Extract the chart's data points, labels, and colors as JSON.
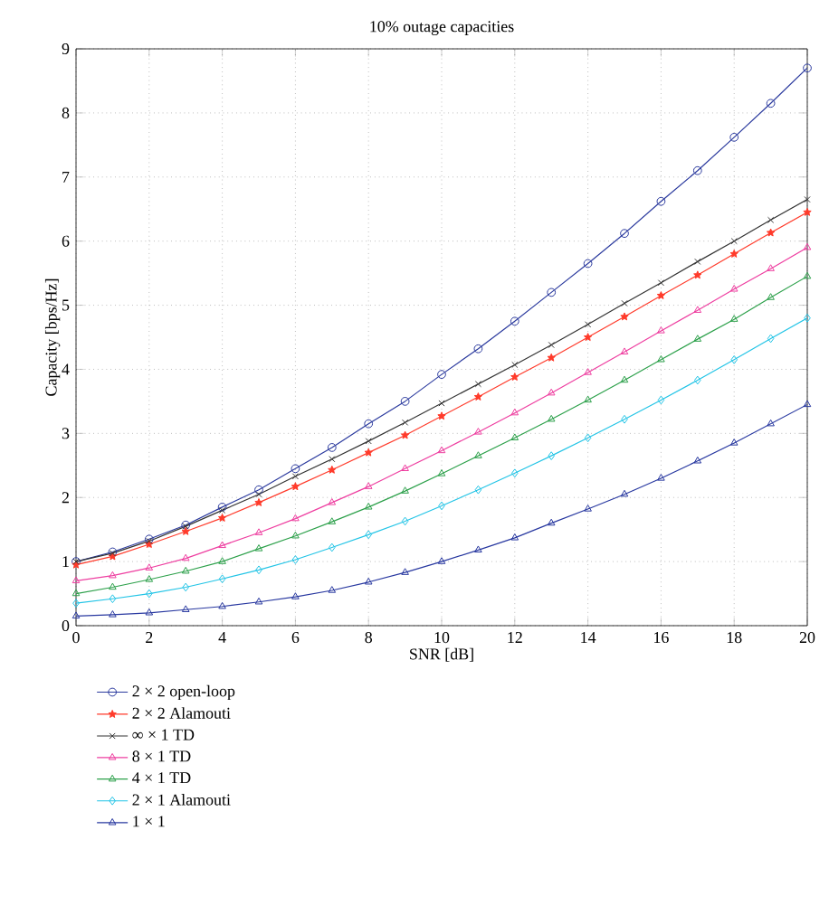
{
  "chart_data": {
    "type": "line",
    "title": "10% outage capacities",
    "xlabel": "SNR [dB]",
    "ylabel": "Capacity [bps/Hz]",
    "x": [
      0,
      1,
      2,
      3,
      4,
      5,
      6,
      7,
      8,
      9,
      10,
      11,
      12,
      13,
      14,
      15,
      16,
      17,
      18,
      19,
      20
    ],
    "xlim": [
      0,
      20
    ],
    "ylim": [
      0,
      9
    ],
    "xticks": [
      0,
      2,
      4,
      6,
      8,
      10,
      12,
      14,
      16,
      18,
      20
    ],
    "yticks": [
      0,
      1,
      2,
      3,
      4,
      5,
      6,
      7,
      8,
      9
    ],
    "grid": true,
    "legend": "bottom left",
    "line_style": "solid",
    "series": [
      {
        "name": "2 × 2 open-loop",
        "color": "#2b3a9e",
        "marker": "circle",
        "values": [
          1.0,
          1.15,
          1.35,
          1.57,
          1.85,
          2.12,
          2.45,
          2.78,
          3.15,
          3.5,
          3.92,
          4.32,
          4.75,
          5.2,
          5.65,
          6.12,
          6.62,
          7.1,
          7.62,
          8.15,
          8.7
        ]
      },
      {
        "name": "2 × 2 Alamouti",
        "color": "#ff3a2a",
        "marker": "star",
        "values": [
          0.95,
          1.08,
          1.27,
          1.47,
          1.68,
          1.92,
          2.17,
          2.43,
          2.7,
          2.97,
          3.27,
          3.57,
          3.88,
          4.18,
          4.5,
          4.82,
          5.15,
          5.47,
          5.8,
          6.13,
          6.45
        ]
      },
      {
        "name": "∞ × 1 TD",
        "color": "#333333",
        "marker": "cross",
        "values": [
          1.0,
          1.13,
          1.32,
          1.55,
          1.8,
          2.05,
          2.33,
          2.6,
          2.88,
          3.17,
          3.47,
          3.77,
          4.07,
          4.38,
          4.7,
          5.03,
          5.35,
          5.68,
          6.0,
          6.33,
          6.65
        ]
      },
      {
        "name": "8 × 1 TD",
        "color": "#ee3ea0",
        "marker": "triangle",
        "values": [
          0.7,
          0.78,
          0.9,
          1.05,
          1.25,
          1.45,
          1.67,
          1.92,
          2.17,
          2.45,
          2.73,
          3.02,
          3.32,
          3.63,
          3.95,
          4.27,
          4.6,
          4.92,
          5.25,
          5.57,
          5.9
        ]
      },
      {
        "name": "4 × 1 TD",
        "color": "#2ca04a",
        "marker": "triangle",
        "values": [
          0.5,
          0.6,
          0.72,
          0.85,
          1.0,
          1.2,
          1.4,
          1.62,
          1.85,
          2.1,
          2.37,
          2.65,
          2.93,
          3.22,
          3.52,
          3.83,
          4.15,
          4.47,
          4.78,
          5.12,
          5.45
        ]
      },
      {
        "name": "2 × 1 Alamouti",
        "color": "#22c4e6",
        "marker": "diamond",
        "values": [
          0.35,
          0.42,
          0.5,
          0.6,
          0.73,
          0.87,
          1.03,
          1.22,
          1.42,
          1.63,
          1.87,
          2.12,
          2.38,
          2.65,
          2.93,
          3.22,
          3.52,
          3.83,
          4.15,
          4.48,
          4.8
        ]
      },
      {
        "name": "1 × 1",
        "color": "#2838a0",
        "marker": "triangle",
        "values": [
          0.15,
          0.17,
          0.2,
          0.25,
          0.3,
          0.37,
          0.45,
          0.55,
          0.68,
          0.83,
          1.0,
          1.18,
          1.37,
          1.6,
          1.82,
          2.05,
          2.3,
          2.57,
          2.85,
          3.15,
          3.45
        ]
      }
    ]
  }
}
